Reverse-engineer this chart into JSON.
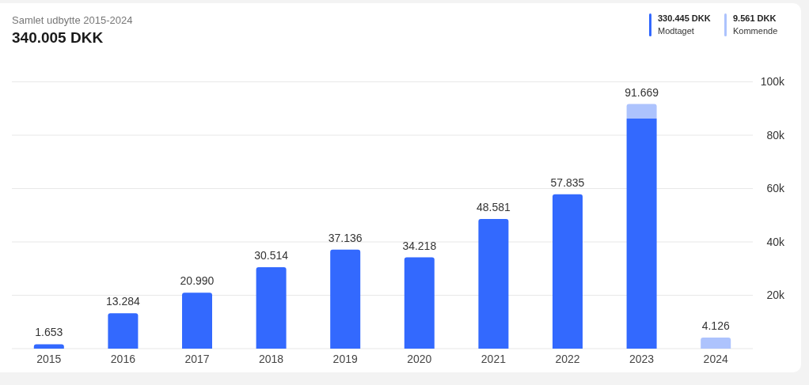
{
  "chart_data": {
    "type": "bar",
    "title": "Samlet udbytte 2015-2024",
    "subtitle": "340.005 DKK",
    "categories": [
      "2015",
      "2016",
      "2017",
      "2018",
      "2019",
      "2020",
      "2021",
      "2022",
      "2023",
      "2024"
    ],
    "stacked": true,
    "series": [
      {
        "name": "Modtaget",
        "color": "#3369fe",
        "values": [
          1653,
          13284,
          20990,
          30514,
          37136,
          34218,
          48581,
          57835,
          86234,
          null
        ]
      },
      {
        "name": "Kommende",
        "color": "#adc3fd",
        "values": [
          null,
          null,
          null,
          null,
          null,
          null,
          null,
          null,
          5435,
          4126
        ]
      }
    ],
    "totals": [
      "1.653",
      "13.284",
      "20.990",
      "30.514",
      "37.136",
      "34.218",
      "48.581",
      "57.835",
      "91.669",
      "4.126"
    ],
    "annotations": [
      "330.445 DKK",
      "9.561 DKK"
    ],
    "ylim": [
      0,
      100000
    ],
    "yticks": [
      {
        "value": 0,
        "label": null
      },
      {
        "value": 20000,
        "label": "20k"
      },
      {
        "value": 40000,
        "label": "40k"
      },
      {
        "value": 60000,
        "label": "60k"
      },
      {
        "value": 80000,
        "label": "80k"
      },
      {
        "value": 100000,
        "label": "100k"
      }
    ],
    "grid": "y",
    "legend": "top right"
  }
}
